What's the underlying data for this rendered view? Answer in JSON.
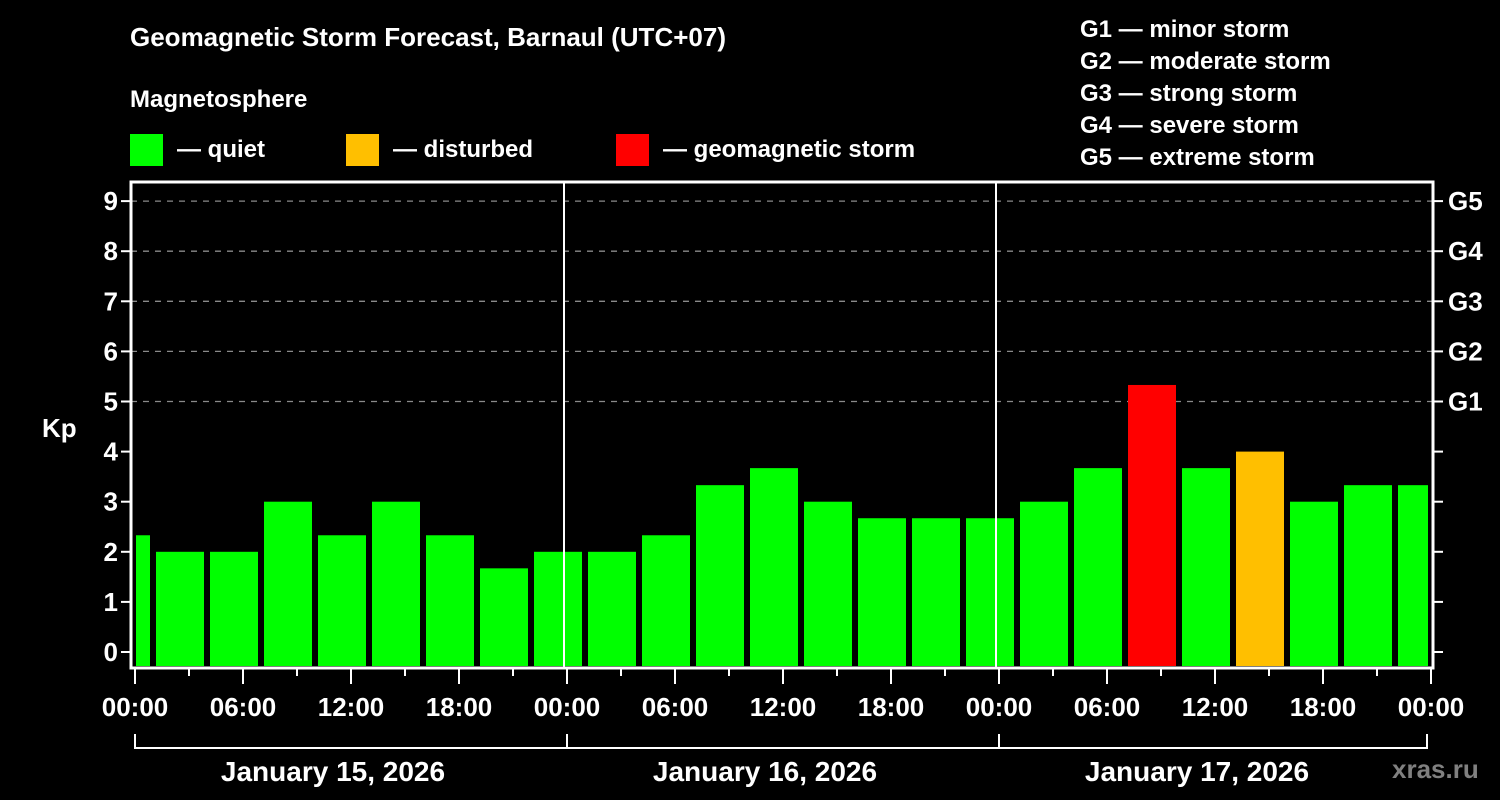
{
  "header": {
    "title": "Geomagnetic Storm Forecast, Barnaul (UTC+07)",
    "subtitle": "Magnetosphere"
  },
  "legend": [
    {
      "label": "— quiet",
      "color": "#00ff00"
    },
    {
      "label": "— disturbed",
      "color": "#ffbf00"
    },
    {
      "label": "— geomagnetic storm",
      "color": "#ff0000"
    }
  ],
  "storm_scale": [
    "G1 — minor storm",
    "G2 — moderate storm",
    "G3 — strong storm",
    "G4 — severe storm",
    "G5 — extreme storm"
  ],
  "watermark": "xras.ru",
  "chart_data": {
    "type": "bar",
    "title": "Geomagnetic Storm Forecast, Barnaul (UTC+07)",
    "xlabel": "",
    "ylabel": "Kp",
    "ylim": [
      0,
      9
    ],
    "yticks": [
      0,
      1,
      2,
      3,
      4,
      5,
      6,
      7,
      8,
      9
    ],
    "right_axis_labels": [
      {
        "kp": 5,
        "label": "G1"
      },
      {
        "kp": 6,
        "label": "G2"
      },
      {
        "kp": 7,
        "label": "G3"
      },
      {
        "kp": 8,
        "label": "G4"
      },
      {
        "kp": 9,
        "label": "G5"
      }
    ],
    "grid": "dashed horizontal at Kp 5-9",
    "xtick_labels": [
      "00:00",
      "06:00",
      "12:00",
      "18:00",
      "00:00",
      "06:00",
      "12:00",
      "18:00",
      "00:00",
      "06:00",
      "12:00",
      "18:00",
      "00:00"
    ],
    "days": [
      "January 15, 2026",
      "January 16, 2026",
      "January 17, 2026"
    ],
    "interval": "3-hour Kp, centered at 02:30, 05:30, ... local time",
    "categories": [
      "Jan 15 00:00-01:00",
      "Jan 15 01:00-04:00",
      "Jan 15 04:00-07:00",
      "Jan 15 07:00-10:00",
      "Jan 15 10:00-13:00",
      "Jan 15 13:00-16:00",
      "Jan 15 16:00-19:00",
      "Jan 15 19:00-22:00",
      "Jan 15 22:00-01:00",
      "Jan 16 01:00-04:00",
      "Jan 16 04:00-07:00",
      "Jan 16 07:00-10:00",
      "Jan 16 10:00-13:00",
      "Jan 16 13:00-16:00",
      "Jan 16 16:00-19:00",
      "Jan 16 19:00-22:00",
      "Jan 16 22:00-01:00",
      "Jan 17 01:00-04:00",
      "Jan 17 04:00-07:00",
      "Jan 17 07:00-10:00",
      "Jan 17 10:00-13:00",
      "Jan 17 13:00-16:00",
      "Jan 17 16:00-19:00",
      "Jan 17 19:00-22:00",
      "Jan 17 22:00-00:00"
    ],
    "values": [
      2.33,
      2.0,
      2.0,
      3.0,
      2.33,
      3.0,
      2.33,
      1.67,
      2.0,
      2.0,
      2.33,
      3.33,
      3.67,
      3.0,
      2.67,
      2.67,
      2.67,
      3.0,
      3.67,
      5.33,
      3.67,
      4.0,
      3.0,
      3.33,
      3.33
    ],
    "colors": [
      "#00ff00",
      "#00ff00",
      "#00ff00",
      "#00ff00",
      "#00ff00",
      "#00ff00",
      "#00ff00",
      "#00ff00",
      "#00ff00",
      "#00ff00",
      "#00ff00",
      "#00ff00",
      "#00ff00",
      "#00ff00",
      "#00ff00",
      "#00ff00",
      "#00ff00",
      "#00ff00",
      "#00ff00",
      "#ff0000",
      "#00ff00",
      "#ffbf00",
      "#00ff00",
      "#00ff00",
      "#00ff00"
    ]
  }
}
